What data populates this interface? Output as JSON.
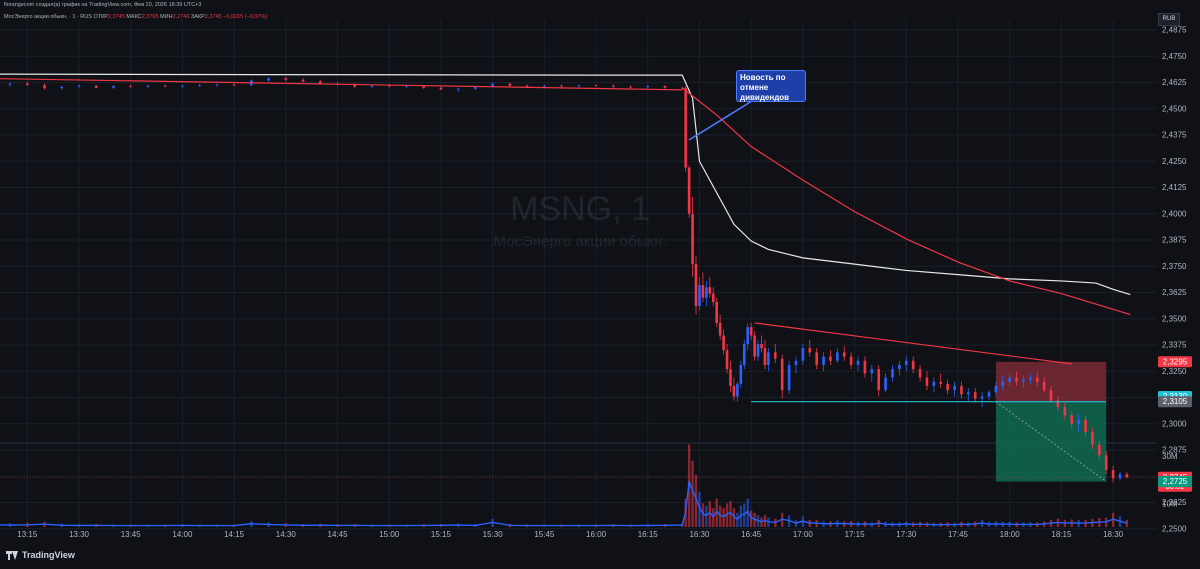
{
  "header": {
    "published": "florangecom создал(а) график на TradingView.com, Фев 20, 2026 18:39 UTC+3",
    "symbol_line": "МосЭнерго акции обыкн. · 1 · RUS",
    "open_label": "ОТКР",
    "open_value": "2,2745",
    "high_label": "МАКС",
    "high_value": "2,2765",
    "low_label": "МИН",
    "low_value": "2,2740",
    "close_label": "ЗАКР",
    "close_value": "2,2745",
    "change": "−0,0015 (−0,07%)",
    "currency": "RUB"
  },
  "watermark": {
    "symbol": "MSNG, 1",
    "description": "МосЭнерго акции обыкн."
  },
  "annotation": {
    "text": "Новость по отмене дивидендов"
  },
  "branding": {
    "logo_text": "TradingView"
  },
  "colors": {
    "up": "#2962ff",
    "down": "#f23645",
    "ma_red": "#f23645",
    "ma_white": "#e8e8e8",
    "level_cyan": "#22c1d6",
    "stop_zone": "#7a2a35",
    "target_zone": "#0f6b52",
    "background": "#0f1117"
  },
  "chart_data": {
    "type": "candlestick",
    "ylim": [
      2.2375,
      2.4875
    ],
    "y_ticks": [
      "2,4875",
      "2,4750",
      "2,4625",
      "2,4500",
      "2,4375",
      "2,4250",
      "2,4125",
      "2,4000",
      "2,3875",
      "2,3750",
      "2,3625",
      "2,3500",
      "2,3375",
      "2,3250",
      "2,3125",
      "2,3000",
      "2,2875",
      "2,2750",
      "2,2625",
      "2,2500"
    ],
    "x_labels": [
      "13:15",
      "13:30",
      "13:45",
      "14:00",
      "14:15",
      "14:30",
      "14:45",
      "15:00",
      "15:15",
      "15:30",
      "15:45",
      "16:00",
      "16:15",
      "16:30",
      "16:45",
      "17:00",
      "17:15",
      "17:30",
      "17:45",
      "18:00",
      "18:15",
      "18:30"
    ],
    "volume_ticks": [
      "30M",
      "20M",
      "10M"
    ],
    "volume_max_millions": 36,
    "price_tags": [
      {
        "value": 2.3295,
        "label": "2,3295",
        "color": "#f23645"
      },
      {
        "value": 2.313,
        "label": "2,3130",
        "color": "#22c1d6"
      },
      {
        "value": 2.3105,
        "label": "2,3105",
        "color": "#5d606b"
      },
      {
        "value": 2.2745,
        "label": "2,2745",
        "sub": "00:02",
        "color": "#f23645"
      },
      {
        "value": 2.2725,
        "label": "2,2725",
        "color": "#089981"
      }
    ],
    "trendlines": [
      {
        "from": [
          "13:00",
          2.4645
        ],
        "to": [
          "16:25",
          2.459
        ],
        "color": "#f23645"
      },
      {
        "from": [
          "16:46",
          2.348
        ],
        "to": [
          "18:18",
          2.3285
        ],
        "color": "#f23645"
      }
    ],
    "horizontal_levels": [
      {
        "from": "16:45",
        "to": "18:28",
        "value": 2.3105,
        "color": "#22c1d6"
      }
    ],
    "position_zones": [
      {
        "from": "17:56",
        "to": "18:28",
        "y_from": 2.3105,
        "y_to": 2.3295,
        "kind": "stop"
      },
      {
        "from": "17:56",
        "to": "18:28",
        "y_from": 2.2725,
        "y_to": 2.3105,
        "kind": "target"
      }
    ],
    "series": [
      {
        "name": "",
        "kind": "ma_white",
        "points": [
          [
            "13:00",
            2.4665
          ],
          [
            "14:00",
            2.4663
          ],
          [
            "15:00",
            2.4662
          ],
          [
            "16:00",
            2.466
          ],
          [
            "16:25",
            2.466
          ],
          [
            "16:28",
            2.455
          ],
          [
            "16:30",
            2.425
          ],
          [
            "16:35",
            2.41
          ],
          [
            "16:40",
            2.395
          ],
          [
            "16:45",
            2.387
          ],
          [
            "16:50",
            2.383
          ],
          [
            "17:00",
            2.379
          ],
          [
            "17:15",
            2.376
          ],
          [
            "17:30",
            2.373
          ],
          [
            "17:45",
            2.371
          ],
          [
            "18:00",
            2.369
          ],
          [
            "18:15",
            2.368
          ],
          [
            "18:25",
            2.367
          ],
          [
            "18:30",
            2.364
          ],
          [
            "18:35",
            2.3615
          ]
        ]
      },
      {
        "name": "",
        "kind": "ma_red",
        "points": [
          [
            "16:25",
            2.46
          ],
          [
            "16:35",
            2.447
          ],
          [
            "16:45",
            2.432
          ],
          [
            "17:00",
            2.416
          ],
          [
            "17:15",
            2.401
          ],
          [
            "17:30",
            2.388
          ],
          [
            "17:45",
            2.377
          ],
          [
            "18:00",
            2.368
          ],
          [
            "18:15",
            2.362
          ],
          [
            "18:35",
            2.352
          ]
        ]
      }
    ],
    "candles": [
      [
        "13:00",
        2.463,
        2.464,
        2.462,
        2.463,
        2.0
      ],
      [
        "13:05",
        2.463,
        2.4635,
        2.461,
        2.4615,
        1.8
      ],
      [
        "13:10",
        2.4615,
        2.4625,
        2.4605,
        2.462,
        1.5
      ],
      [
        "13:15",
        2.462,
        2.463,
        2.461,
        2.4612,
        1.7
      ],
      [
        "13:20",
        2.4612,
        2.462,
        2.459,
        2.4598,
        2.2
      ],
      [
        "13:25",
        2.4598,
        2.4608,
        2.459,
        2.4605,
        1.4
      ],
      [
        "13:30",
        2.4605,
        2.4615,
        2.46,
        2.461,
        1.2
      ],
      [
        "13:35",
        2.461,
        2.4612,
        2.4598,
        2.46,
        1.3
      ],
      [
        "13:40",
        2.46,
        2.4612,
        2.4595,
        2.4608,
        1.1
      ],
      [
        "13:45",
        2.4608,
        2.4615,
        2.46,
        2.4605,
        1.0
      ],
      [
        "13:50",
        2.4605,
        2.4615,
        2.46,
        2.461,
        1.0
      ],
      [
        "13:55",
        2.461,
        2.4615,
        2.4602,
        2.4606,
        1.1
      ],
      [
        "14:00",
        2.4606,
        2.4614,
        2.46,
        2.461,
        1.2
      ],
      [
        "14:05",
        2.461,
        2.4618,
        2.4604,
        2.4612,
        1.0
      ],
      [
        "14:10",
        2.4612,
        2.462,
        2.4606,
        2.4615,
        1.1
      ],
      [
        "14:15",
        2.4615,
        2.4622,
        2.4608,
        2.4612,
        1.0
      ],
      [
        "14:20",
        2.4612,
        2.464,
        2.461,
        2.4635,
        2.5
      ],
      [
        "14:25",
        2.4635,
        2.465,
        2.4628,
        2.4645,
        2.0
      ],
      [
        "14:30",
        2.4645,
        2.4652,
        2.463,
        2.4638,
        1.6
      ],
      [
        "14:35",
        2.4638,
        2.4645,
        2.4625,
        2.463,
        1.3
      ],
      [
        "14:40",
        2.463,
        2.4638,
        2.4615,
        2.462,
        1.4
      ],
      [
        "14:45",
        2.462,
        2.4628,
        2.461,
        2.4615,
        1.2
      ],
      [
        "14:50",
        2.4615,
        2.4622,
        2.46,
        2.4605,
        1.3
      ],
      [
        "14:55",
        2.4605,
        2.4615,
        2.4598,
        2.461,
        1.1
      ],
      [
        "15:00",
        2.461,
        2.4618,
        2.4602,
        2.4606,
        1.0
      ],
      [
        "15:05",
        2.4606,
        2.4614,
        2.4598,
        2.461,
        1.0
      ],
      [
        "15:10",
        2.461,
        2.4614,
        2.4595,
        2.46,
        1.2
      ],
      [
        "15:15",
        2.46,
        2.4608,
        2.4588,
        2.4592,
        1.3
      ],
      [
        "15:20",
        2.4592,
        2.46,
        2.458,
        2.4595,
        1.5
      ],
      [
        "15:25",
        2.4595,
        2.4608,
        2.459,
        2.4603,
        1.2
      ],
      [
        "15:30",
        2.4603,
        2.4625,
        2.46,
        2.462,
        3.5
      ],
      [
        "15:35",
        2.462,
        2.4625,
        2.4605,
        2.461,
        1.3
      ],
      [
        "15:40",
        2.461,
        2.4616,
        2.46,
        2.4605,
        1.1
      ],
      [
        "15:45",
        2.4605,
        2.4614,
        2.46,
        2.461,
        1.0
      ],
      [
        "15:50",
        2.461,
        2.4615,
        2.4603,
        2.4608,
        1.0
      ],
      [
        "15:55",
        2.4608,
        2.4616,
        2.46,
        2.4612,
        1.1
      ],
      [
        "16:00",
        2.4612,
        2.4618,
        2.4605,
        2.461,
        1.0
      ],
      [
        "16:05",
        2.461,
        2.4615,
        2.46,
        2.4605,
        1.2
      ],
      [
        "16:10",
        2.4605,
        2.4612,
        2.4598,
        2.4603,
        1.1
      ],
      [
        "16:15",
        2.4603,
        2.4612,
        2.4596,
        2.4608,
        1.2
      ],
      [
        "16:20",
        2.4608,
        2.4612,
        2.4595,
        2.46,
        1.3
      ],
      [
        "16:25",
        2.46,
        2.4605,
        2.459,
        2.4598,
        1.5
      ],
      [
        "16:26",
        2.4598,
        2.461,
        2.42,
        2.422,
        12.0
      ],
      [
        "16:27",
        2.422,
        2.423,
        2.398,
        2.4,
        35.0
      ],
      [
        "16:28",
        2.4,
        2.408,
        2.37,
        2.376,
        28.0
      ],
      [
        "16:29",
        2.376,
        2.38,
        2.352,
        2.356,
        22.0
      ],
      [
        "16:30",
        2.356,
        2.37,
        2.354,
        2.366,
        15.0
      ],
      [
        "16:31",
        2.366,
        2.372,
        2.358,
        2.36,
        10.0
      ],
      [
        "16:32",
        2.36,
        2.368,
        2.356,
        2.365,
        9.0
      ],
      [
        "16:33",
        2.365,
        2.37,
        2.36,
        2.362,
        11.0
      ],
      [
        "16:34",
        2.362,
        2.365,
        2.356,
        2.358,
        8.0
      ],
      [
        "16:35",
        2.358,
        2.36,
        2.346,
        2.348,
        12.0
      ],
      [
        "16:36",
        2.348,
        2.352,
        2.34,
        2.342,
        9.0
      ],
      [
        "16:37",
        2.342,
        2.345,
        2.333,
        2.335,
        8.0
      ],
      [
        "16:38",
        2.335,
        2.338,
        2.324,
        2.326,
        10.0
      ],
      [
        "16:39",
        2.326,
        2.33,
        2.315,
        2.318,
        11.0
      ],
      [
        "16:40",
        2.318,
        2.322,
        2.311,
        2.313,
        8.0
      ],
      [
        "16:41",
        2.313,
        2.32,
        2.3105,
        2.319,
        6.0
      ],
      [
        "16:42",
        2.319,
        2.33,
        2.317,
        2.328,
        9.0
      ],
      [
        "16:43",
        2.328,
        2.34,
        2.326,
        2.338,
        10.0
      ],
      [
        "16:44",
        2.338,
        2.348,
        2.335,
        2.346,
        12.0
      ],
      [
        "16:45",
        2.346,
        2.348,
        2.34,
        2.342,
        7.0
      ],
      [
        "16:46",
        2.342,
        2.344,
        2.33,
        2.332,
        6.0
      ],
      [
        "16:47",
        2.332,
        2.34,
        2.33,
        2.338,
        5.0
      ],
      [
        "16:48",
        2.338,
        2.342,
        2.334,
        2.336,
        4.0
      ],
      [
        "16:49",
        2.336,
        2.34,
        2.326,
        2.328,
        5.0
      ],
      [
        "16:50",
        2.328,
        2.336,
        2.325,
        2.334,
        4.0
      ],
      [
        "16:52",
        2.334,
        2.338,
        2.329,
        2.331,
        3.5
      ],
      [
        "16:54",
        2.331,
        2.333,
        2.312,
        2.316,
        6.0
      ],
      [
        "16:56",
        2.316,
        2.33,
        2.314,
        2.328,
        5.0
      ],
      [
        "16:58",
        2.328,
        2.332,
        2.324,
        2.33,
        3.0
      ],
      [
        "17:00",
        2.33,
        2.338,
        2.328,
        2.336,
        4.5
      ],
      [
        "17:02",
        2.336,
        2.34,
        2.332,
        2.334,
        3.0
      ],
      [
        "17:04",
        2.334,
        2.336,
        2.326,
        2.328,
        3.0
      ],
      [
        "17:06",
        2.328,
        2.334,
        2.325,
        2.332,
        2.5
      ],
      [
        "17:08",
        2.332,
        2.335,
        2.328,
        2.33,
        2.5
      ],
      [
        "17:10",
        2.33,
        2.336,
        2.329,
        2.334,
        2.8
      ],
      [
        "17:12",
        2.334,
        2.337,
        2.33,
        2.332,
        2.5
      ],
      [
        "17:14",
        2.332,
        2.334,
        2.326,
        2.328,
        2.6
      ],
      [
        "17:16",
        2.328,
        2.332,
        2.325,
        2.33,
        2.2
      ],
      [
        "17:18",
        2.33,
        2.332,
        2.322,
        2.324,
        2.4
      ],
      [
        "17:20",
        2.324,
        2.328,
        2.32,
        2.326,
        2.0
      ],
      [
        "17:22",
        2.326,
        2.328,
        2.313,
        2.316,
        3.0
      ],
      [
        "17:24",
        2.316,
        2.324,
        2.315,
        2.322,
        2.2
      ],
      [
        "17:26",
        2.322,
        2.328,
        2.32,
        2.326,
        2.0
      ],
      [
        "17:28",
        2.326,
        2.33,
        2.323,
        2.328,
        2.0
      ],
      [
        "17:30",
        2.328,
        2.332,
        2.325,
        2.33,
        2.4
      ],
      [
        "17:32",
        2.33,
        2.332,
        2.324,
        2.326,
        2.0
      ],
      [
        "17:34",
        2.326,
        2.328,
        2.32,
        2.322,
        2.2
      ],
      [
        "17:36",
        2.322,
        2.325,
        2.316,
        2.318,
        2.0
      ],
      [
        "17:38",
        2.318,
        2.322,
        2.315,
        2.32,
        1.8
      ],
      [
        "17:40",
        2.32,
        2.324,
        2.317,
        2.319,
        1.8
      ],
      [
        "17:42",
        2.319,
        2.321,
        2.314,
        2.316,
        2.0
      ],
      [
        "17:44",
        2.316,
        2.32,
        2.313,
        2.318,
        1.8
      ],
      [
        "17:46",
        2.318,
        2.32,
        2.312,
        2.314,
        2.2
      ],
      [
        "17:48",
        2.314,
        2.317,
        2.311,
        2.315,
        2.0
      ],
      [
        "17:50",
        2.315,
        2.317,
        2.31,
        2.312,
        2.4
      ],
      [
        "17:52",
        2.312,
        2.315,
        2.308,
        2.313,
        3.0
      ],
      [
        "17:54",
        2.313,
        2.316,
        2.311,
        2.315,
        2.2
      ],
      [
        "17:56",
        2.315,
        2.32,
        2.313,
        2.318,
        2.4
      ],
      [
        "17:58",
        2.318,
        2.323,
        2.316,
        2.32,
        2.2
      ],
      [
        "18:00",
        2.32,
        2.324,
        2.318,
        2.322,
        2.2
      ],
      [
        "18:02",
        2.322,
        2.325,
        2.318,
        2.32,
        2.0
      ],
      [
        "18:04",
        2.32,
        2.323,
        2.317,
        2.321,
        2.0
      ],
      [
        "18:06",
        2.321,
        2.324,
        2.319,
        2.322,
        2.0
      ],
      [
        "18:08",
        2.322,
        2.325,
        2.318,
        2.32,
        2.0
      ],
      [
        "18:10",
        2.32,
        2.322,
        2.315,
        2.316,
        2.4
      ],
      [
        "18:12",
        2.316,
        2.318,
        2.31,
        2.311,
        3.0
      ],
      [
        "18:14",
        2.311,
        2.313,
        2.306,
        2.308,
        3.5
      ],
      [
        "18:16",
        2.308,
        2.31,
        2.302,
        2.304,
        3.0
      ],
      [
        "18:18",
        2.304,
        2.306,
        2.298,
        2.3,
        3.2
      ],
      [
        "18:20",
        2.3,
        2.305,
        2.296,
        2.302,
        3.0
      ],
      [
        "18:22",
        2.302,
        2.304,
        2.294,
        2.296,
        3.0
      ],
      [
        "18:24",
        2.296,
        2.298,
        2.288,
        2.29,
        3.4
      ],
      [
        "18:26",
        2.29,
        2.292,
        2.283,
        2.285,
        3.8
      ],
      [
        "18:28",
        2.285,
        2.287,
        2.276,
        2.278,
        4.0
      ],
      [
        "18:30",
        2.278,
        2.28,
        2.272,
        2.274,
        6.0
      ],
      [
        "18:32",
        2.274,
        2.277,
        2.273,
        2.276,
        4.5
      ],
      [
        "18:34",
        2.276,
        2.277,
        2.274,
        2.2745,
        3.0
      ]
    ]
  }
}
